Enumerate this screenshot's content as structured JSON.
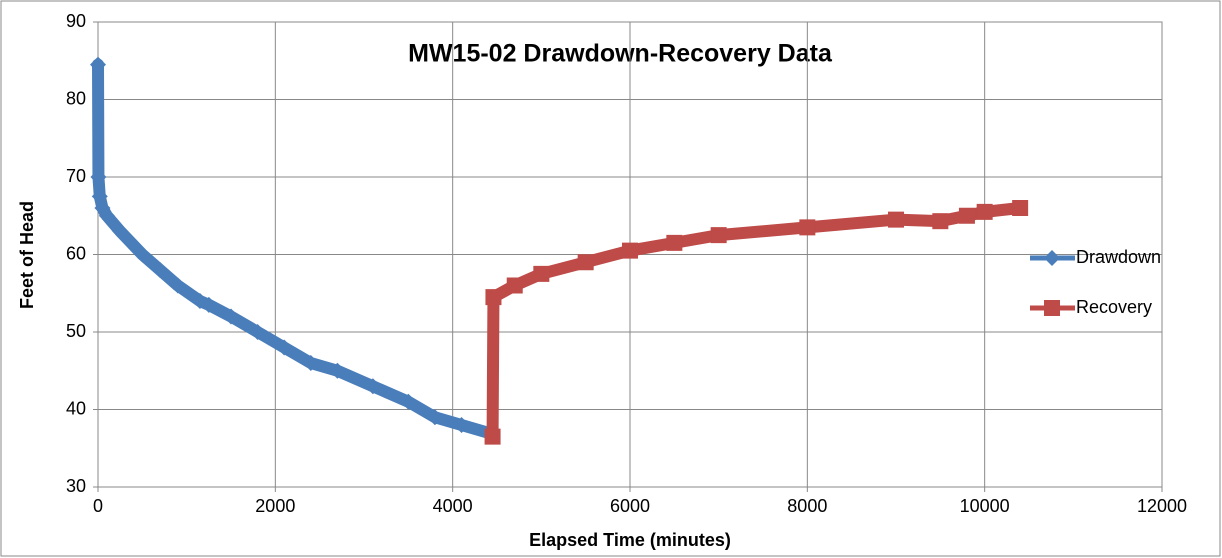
{
  "chart_data": {
    "type": "scatter",
    "title": "MW15-02 Drawdown-Recovery Data",
    "x_label": "Elapsed Time (minutes)",
    "y_label": "Feet of Head",
    "xlim": [
      0,
      12000
    ],
    "xticks": [
      0,
      2000,
      4000,
      6000,
      8000,
      10000,
      12000
    ],
    "ylim": [
      30,
      90
    ],
    "yticks": [
      30,
      40,
      50,
      60,
      70,
      80,
      90
    ],
    "grid": true,
    "legend": "right",
    "series": [
      {
        "name": "Drawdown",
        "color": "#4a7ebb",
        "marker": "diamond",
        "x": [
          0,
          5,
          20,
          50,
          100,
          250,
          500,
          700,
          900,
          1150,
          1250,
          1500,
          1800,
          2100,
          2400,
          2700,
          3100,
          3500,
          3800,
          4100,
          4400
        ],
        "values": [
          84.5,
          70,
          67.5,
          66,
          65,
          63,
          60,
          58,
          56,
          54,
          53.5,
          52,
          50,
          48,
          46,
          45,
          43,
          41,
          39,
          38,
          37
        ]
      },
      {
        "name": "Recovery",
        "color": "#be4b48",
        "marker": "square",
        "x": [
          4450,
          4460,
          4700,
          5000,
          5500,
          6000,
          6500,
          7000,
          8000,
          9000,
          9500,
          9800,
          10000,
          10400
        ],
        "values": [
          36.5,
          54.5,
          56,
          57.5,
          59,
          60.5,
          61.5,
          62.5,
          63.5,
          64.5,
          64.3,
          65,
          65.5,
          66
        ]
      }
    ]
  }
}
